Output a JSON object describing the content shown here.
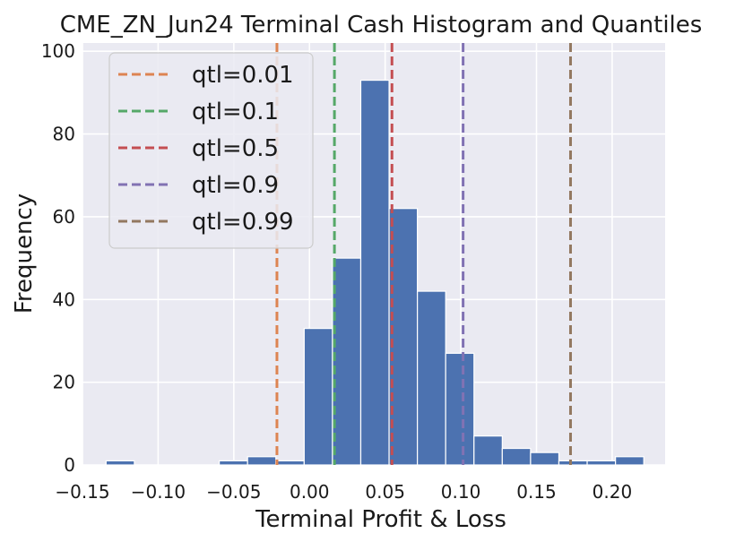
{
  "chart_data": {
    "type": "bar",
    "title": "CME_ZN_Jun24 Terminal Cash Histogram and Quantiles",
    "xlabel": "Terminal Profit & Loss",
    "ylabel": "Frequency",
    "xlim": [
      -0.15,
      0.235
    ],
    "ylim": [
      0,
      102
    ],
    "x_ticks": [
      -0.15,
      -0.1,
      -0.05,
      0.0,
      0.05,
      0.1,
      0.15,
      0.2
    ],
    "x_tick_labels": [
      "−0.15",
      "−0.10",
      "−0.05",
      "0.00",
      "0.05",
      "0.10",
      "0.15",
      "0.20"
    ],
    "y_ticks": [
      0,
      20,
      40,
      60,
      80,
      100
    ],
    "y_tick_labels": [
      "0",
      "20",
      "40",
      "60",
      "80",
      "100"
    ],
    "grid": true,
    "bin_width": 0.0187,
    "bins": [
      {
        "start": -0.1344,
        "count": 1
      },
      {
        "start": -0.1157,
        "count": 0
      },
      {
        "start": -0.097,
        "count": 0
      },
      {
        "start": -0.0783,
        "count": 0
      },
      {
        "start": -0.0596,
        "count": 1
      },
      {
        "start": -0.0409,
        "count": 2
      },
      {
        "start": -0.0222,
        "count": 1
      },
      {
        "start": -0.0035,
        "count": 33
      },
      {
        "start": 0.0152,
        "count": 50
      },
      {
        "start": 0.0339,
        "count": 93
      },
      {
        "start": 0.0526,
        "count": 62
      },
      {
        "start": 0.0713,
        "count": 42
      },
      {
        "start": 0.09,
        "count": 27
      },
      {
        "start": 0.1087,
        "count": 7
      },
      {
        "start": 0.1274,
        "count": 4
      },
      {
        "start": 0.1461,
        "count": 3
      },
      {
        "start": 0.1648,
        "count": 1
      },
      {
        "start": 0.1835,
        "count": 1
      },
      {
        "start": 0.2022,
        "count": 2
      }
    ],
    "bar_color": "#4c72b0",
    "quantiles": [
      {
        "label": "qtl=0.01",
        "x": -0.0215,
        "color": "#dd8452"
      },
      {
        "label": "qtl=0.1",
        "x": 0.0165,
        "color": "#55a868"
      },
      {
        "label": "qtl=0.5",
        "x": 0.0545,
        "color": "#c44e52"
      },
      {
        "label": "qtl=0.9",
        "x": 0.1015,
        "color": "#8172b3"
      },
      {
        "label": "qtl=0.99",
        "x": 0.1725,
        "color": "#937860"
      }
    ],
    "legend_position": "top-left"
  }
}
